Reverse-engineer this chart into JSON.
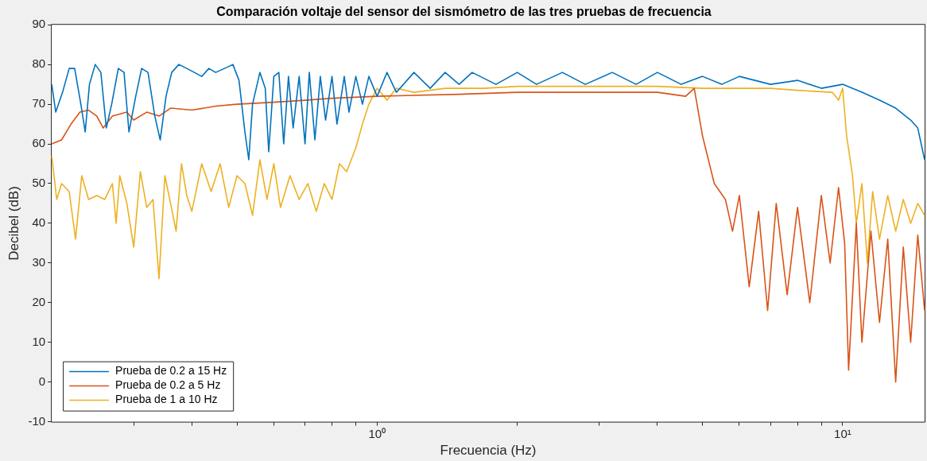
{
  "chart_data": {
    "type": "line",
    "title": "Comparación voltaje del sensor del sismómetro de las tres pruebas de frecuencia",
    "xlabel": "Frecuencia (Hz)",
    "ylabel": "Decibel (dB)",
    "log": "x",
    "grid": false,
    "legend": "bottom left",
    "marker": "none",
    "line_style": "solid",
    "xlim": [
      0.2,
      15
    ],
    "xticks": [
      {
        "value": 0.3,
        "label": null
      },
      {
        "value": 0.4,
        "label": null
      },
      {
        "value": 0.5,
        "label": null
      },
      {
        "value": 0.6,
        "label": null
      },
      {
        "value": 0.7,
        "label": null
      },
      {
        "value": 0.8,
        "label": null
      },
      {
        "value": 0.9,
        "label": null
      },
      {
        "value": 1,
        "label": "10⁰"
      },
      {
        "value": 2,
        "label": null
      },
      {
        "value": 3,
        "label": null
      },
      {
        "value": 4,
        "label": null
      },
      {
        "value": 5,
        "label": null
      },
      {
        "value": 6,
        "label": null
      },
      {
        "value": 7,
        "label": null
      },
      {
        "value": 8,
        "label": null
      },
      {
        "value": 9,
        "label": null
      },
      {
        "value": 10,
        "label": "10¹"
      }
    ],
    "ylim": [
      -10,
      90
    ],
    "yticks": [
      -10,
      0,
      10,
      20,
      30,
      40,
      50,
      60,
      70,
      80,
      90
    ],
    "series": [
      {
        "name": "Prueba de 0.2 a 15 Hz",
        "color": "#0072bd",
        "x": [
          0.2,
          0.204,
          0.211,
          0.218,
          0.224,
          0.231,
          0.236,
          0.241,
          0.248,
          0.255,
          0.262,
          0.269,
          0.278,
          0.286,
          0.293,
          0.303,
          0.312,
          0.322,
          0.333,
          0.342,
          0.352,
          0.362,
          0.375,
          0.39,
          0.405,
          0.42,
          0.435,
          0.45,
          0.47,
          0.49,
          0.505,
          0.52,
          0.53,
          0.54,
          0.56,
          0.575,
          0.585,
          0.6,
          0.615,
          0.63,
          0.645,
          0.66,
          0.68,
          0.7,
          0.715,
          0.735,
          0.755,
          0.775,
          0.8,
          0.82,
          0.85,
          0.87,
          0.9,
          0.93,
          0.96,
          1,
          1.05,
          1.1,
          1.2,
          1.3,
          1.4,
          1.5,
          1.6,
          1.8,
          2,
          2.2,
          2.5,
          2.8,
          3.2,
          3.6,
          4,
          4.5,
          5,
          5.5,
          6,
          7,
          8,
          9,
          10,
          11,
          12,
          13,
          14,
          14.5,
          15
        ],
        "values": [
          75,
          68,
          73,
          79,
          79,
          70,
          63,
          75,
          80,
          78,
          64,
          70,
          79,
          78,
          63,
          72,
          79,
          78,
          67,
          61,
          72,
          78,
          80,
          79,
          78,
          77,
          79,
          78,
          79,
          80,
          76,
          63,
          56,
          70,
          78,
          74,
          58,
          77,
          78,
          60,
          77,
          64,
          77,
          60,
          78,
          61,
          77,
          66,
          77,
          65,
          77,
          68,
          77,
          70,
          77,
          72,
          78,
          73,
          78,
          74,
          78,
          75,
          78,
          75,
          78,
          75,
          78,
          75,
          78,
          75,
          78,
          75,
          77,
          75,
          77,
          75,
          76,
          74,
          75,
          73,
          71,
          69,
          66,
          64,
          56
        ]
      },
      {
        "name": "Prueba de 0.2 a 5 Hz",
        "color": "#d95319",
        "x": [
          0.2,
          0.21,
          0.22,
          0.23,
          0.24,
          0.25,
          0.258,
          0.27,
          0.29,
          0.3,
          0.32,
          0.34,
          0.36,
          0.4,
          0.45,
          0.5,
          0.6,
          0.7,
          0.8,
          1,
          1.5,
          2,
          3,
          4,
          4.6,
          4.8,
          5,
          5.3,
          5.6,
          5.8,
          6,
          6.3,
          6.6,
          6.9,
          7.2,
          7.6,
          8,
          8.5,
          9,
          9.4,
          9.8,
          10.1,
          10.3,
          10.7,
          11,
          11.5,
          12,
          12.5,
          13,
          13.5,
          14,
          14.5,
          15
        ],
        "values": [
          60,
          61,
          65,
          68,
          68.5,
          67,
          64,
          67,
          68,
          66,
          68,
          67,
          69,
          68.5,
          69.5,
          70,
          70.5,
          71,
          71.5,
          72,
          72.5,
          73,
          73,
          73,
          72,
          74,
          62,
          50,
          46,
          38,
          47,
          24,
          43,
          18,
          45,
          22,
          44,
          20,
          47,
          30,
          49,
          35,
          3,
          40,
          10,
          38,
          15,
          36,
          0,
          34,
          10,
          37,
          18
        ]
      },
      {
        "name": "Prueba de 1 a 10 Hz",
        "color": "#edb120",
        "x": [
          0.2,
          0.205,
          0.21,
          0.218,
          0.225,
          0.232,
          0.24,
          0.25,
          0.26,
          0.27,
          0.275,
          0.28,
          0.29,
          0.3,
          0.31,
          0.32,
          0.33,
          0.34,
          0.35,
          0.36,
          0.37,
          0.38,
          0.39,
          0.4,
          0.42,
          0.44,
          0.46,
          0.48,
          0.5,
          0.52,
          0.54,
          0.56,
          0.58,
          0.6,
          0.62,
          0.65,
          0.68,
          0.71,
          0.74,
          0.77,
          0.8,
          0.83,
          0.86,
          0.9,
          0.93,
          0.96,
          1,
          1.05,
          1.1,
          1.2,
          1.4,
          1.7,
          2,
          3,
          4,
          5,
          6,
          7,
          8,
          9.5,
          9.8,
          10,
          10.2,
          10.5,
          10.7,
          11,
          11.3,
          11.6,
          12,
          12.5,
          13,
          13.5,
          14,
          14.5,
          15
        ],
        "values": [
          57,
          46,
          50,
          48,
          36,
          52,
          46,
          47,
          46,
          50,
          40,
          52,
          45,
          34,
          53,
          44,
          46,
          26,
          52,
          45,
          38,
          55,
          47,
          43,
          55,
          48,
          55,
          44,
          52,
          50,
          42,
          56,
          46,
          55,
          44,
          52,
          46,
          50,
          43,
          50,
          46,
          55,
          53,
          59,
          65,
          70,
          74,
          71,
          74,
          73,
          74,
          74,
          74.5,
          74.5,
          74.5,
          74,
          74,
          74,
          73.5,
          73,
          71,
          74,
          62,
          52,
          40,
          50,
          30,
          48,
          36,
          47,
          38,
          46,
          40,
          45,
          42
        ]
      }
    ]
  }
}
